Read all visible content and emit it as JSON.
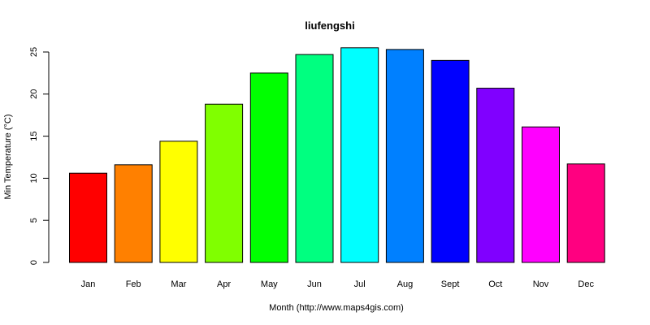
{
  "chart_data": {
    "type": "bar",
    "title": "liufengshi",
    "xlabel": "Month (http://www.maps4gis.com)",
    "ylabel": "Min Temperature (°C)",
    "categories": [
      "Jan",
      "Feb",
      "Mar",
      "Apr",
      "May",
      "Jun",
      "Jul",
      "Aug",
      "Sept",
      "Oct",
      "Nov",
      "Dec"
    ],
    "values": [
      10.6,
      11.6,
      14.4,
      18.8,
      22.5,
      24.7,
      25.5,
      25.3,
      24.0,
      20.7,
      16.1,
      11.7
    ],
    "colors": [
      "#FF0000",
      "#FF8000",
      "#FFFF00",
      "#80FF00",
      "#00FF00",
      "#00FF80",
      "#00FFFF",
      "#0080FF",
      "#0000FF",
      "#8000FF",
      "#FF00FF",
      "#FF0080"
    ],
    "yticks": [
      0,
      5,
      10,
      15,
      20,
      25
    ],
    "ylim": [
      0,
      25
    ],
    "grid": false,
    "legend": "none"
  }
}
